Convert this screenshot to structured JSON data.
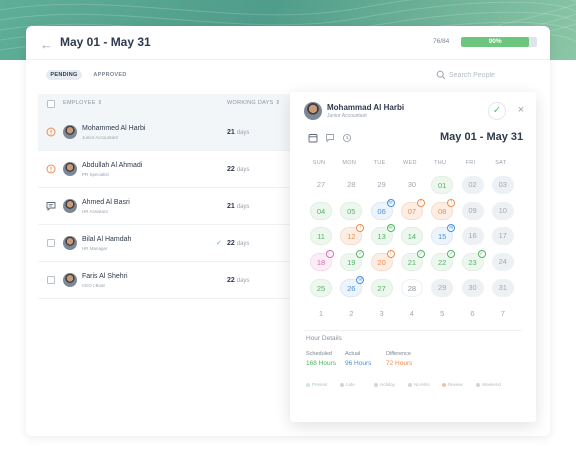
{
  "header": {
    "title": "May 01 -  May 31",
    "progress_count": "76/84",
    "progress_label": "90%",
    "progress_fraction": 0.9
  },
  "tabs": [
    {
      "label": "PENDING",
      "active": true
    },
    {
      "label": "APPROVED",
      "active": false
    }
  ],
  "search": {
    "placeholder": "Search People",
    "icon": "search-icon"
  },
  "table": {
    "columns": [
      "EMPLOYEE",
      "WORKING DAYS"
    ],
    "unit": "days",
    "rows": [
      {
        "name": "Mohammed Al Harbi",
        "role": "Junior Accountant",
        "days": "21",
        "status": "warning-icon",
        "active": true
      },
      {
        "name": "Abdullah Al Ahmadi",
        "role": "PR Specialist",
        "days": "22",
        "status": "warning-icon",
        "active": false
      },
      {
        "name": "Ahmed Al Basri",
        "role": "HR Assistant",
        "days": "21",
        "status": "comment-icon",
        "active": false
      },
      {
        "name": "Bilal Al Hamdah",
        "role": "HR Manager",
        "days": "22",
        "status": "checkbox",
        "approved": true,
        "active": false
      },
      {
        "name": "Faris Al Shehri",
        "role": "CEO / Boat",
        "days": "22",
        "status": "checkbox",
        "active": false
      }
    ]
  },
  "panel": {
    "name": "Mohammad Al Harbi",
    "role": "Junior Accountant",
    "range": "May 01 - May 31",
    "weekdays": [
      "SUN",
      "MON",
      "TUE",
      "WED",
      "THU",
      "FRI",
      "SAT"
    ],
    "days": [
      {
        "d": "27",
        "s": "muted"
      },
      {
        "d": "28",
        "s": "muted"
      },
      {
        "d": "29",
        "s": "muted"
      },
      {
        "d": "30",
        "s": "muted"
      },
      {
        "d": "01",
        "s": "green"
      },
      {
        "d": "02",
        "s": "grey"
      },
      {
        "d": "03",
        "s": "grey"
      },
      {
        "d": "04",
        "s": "green"
      },
      {
        "d": "05",
        "s": "green"
      },
      {
        "d": "06",
        "s": "blue",
        "m": "✉"
      },
      {
        "d": "07",
        "s": "orange",
        "m": "!"
      },
      {
        "d": "08",
        "s": "orange",
        "m": "!"
      },
      {
        "d": "09",
        "s": "grey"
      },
      {
        "d": "10",
        "s": "grey"
      },
      {
        "d": "11",
        "s": "green"
      },
      {
        "d": "12",
        "s": "orange",
        "m": "!"
      },
      {
        "d": "13",
        "s": "green",
        "m": "✉"
      },
      {
        "d": "14",
        "s": "green"
      },
      {
        "d": "15",
        "s": "blue",
        "m": "✉"
      },
      {
        "d": "16",
        "s": "grey"
      },
      {
        "d": "17",
        "s": "grey"
      },
      {
        "d": "18",
        "s": "pink",
        "m": "☾"
      },
      {
        "d": "19",
        "s": "green",
        "m": "✓"
      },
      {
        "d": "20",
        "s": "orange",
        "m": "!"
      },
      {
        "d": "21",
        "s": "green",
        "m": "✓"
      },
      {
        "d": "22",
        "s": "green",
        "m": "✓"
      },
      {
        "d": "23",
        "s": "green",
        "m": "✓"
      },
      {
        "d": "24",
        "s": "grey"
      },
      {
        "d": "25",
        "s": "green"
      },
      {
        "d": "26",
        "s": "blue",
        "m": "✉"
      },
      {
        "d": "27",
        "s": "green"
      },
      {
        "d": "28",
        "s": "gray-text"
      },
      {
        "d": "29",
        "s": "grey"
      },
      {
        "d": "30",
        "s": "grey"
      },
      {
        "d": "31",
        "s": "grey"
      },
      {
        "d": "1",
        "s": "muted"
      },
      {
        "d": "2",
        "s": "muted"
      },
      {
        "d": "3",
        "s": "muted"
      },
      {
        "d": "4",
        "s": "muted"
      },
      {
        "d": "5",
        "s": "muted"
      },
      {
        "d": "6",
        "s": "muted"
      },
      {
        "d": "7",
        "s": "muted"
      }
    ],
    "hour_details": {
      "title": "Hour Details",
      "scheduled_label": "Scheduled",
      "scheduled_value": "168 Hours",
      "actual_label": "Actual",
      "actual_value": "96 Hours",
      "difference_label": "Difference",
      "difference_value": "72 Hours"
    },
    "legend": [
      {
        "label": "Present",
        "color": "#cfe9d4"
      },
      {
        "label": "Late",
        "color": "#cfd6dd"
      },
      {
        "label": "Holiday",
        "color": "#cfd6dd"
      },
      {
        "label": "No-Mini",
        "color": "#cfd6dd"
      },
      {
        "label": "Review",
        "color": "#f3c1a1"
      },
      {
        "label": "Weekend",
        "color": "#cfd6dd"
      }
    ]
  },
  "colors": {
    "accent": "#6cc67d",
    "green": "#52b564",
    "orange": "#ef8c50",
    "blue": "#4a90d9",
    "pink": "#d670ac"
  }
}
